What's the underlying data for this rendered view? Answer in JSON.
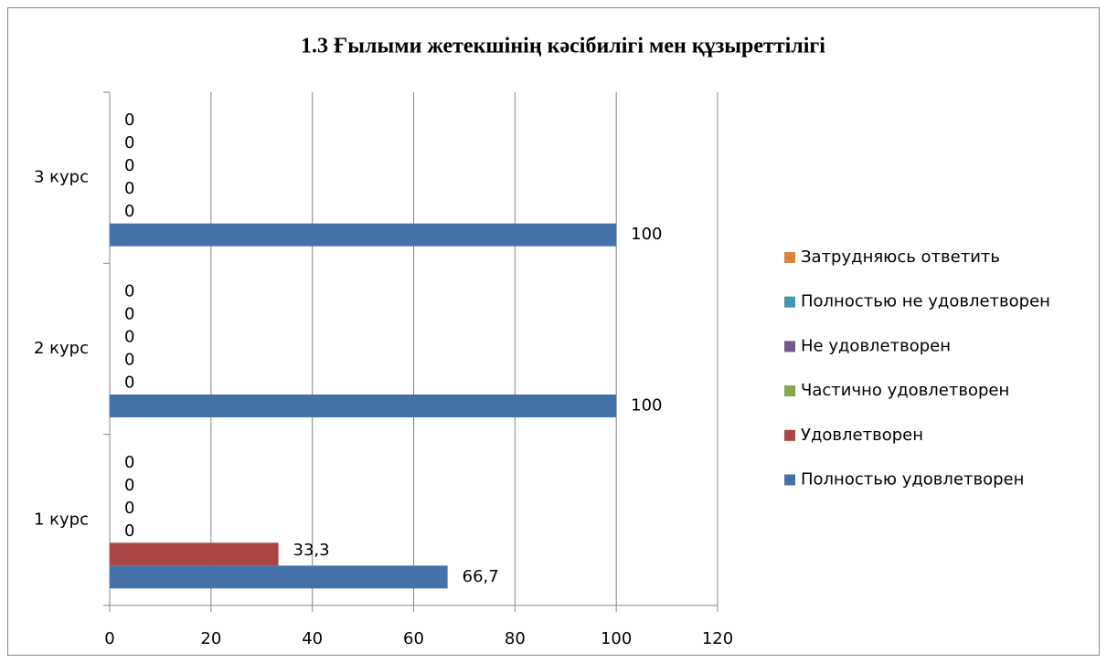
{
  "chart_data": {
    "type": "hbar",
    "title": "1.3 Ғылыми жетекшінің кәсібилігі мен құзыреттілігі",
    "categories": [
      "1 курс",
      "2 курс",
      "3 курс"
    ],
    "series": [
      {
        "name": "Полностью удовлетворен",
        "color": "#4472a8",
        "values": [
          66.7,
          100,
          100
        ],
        "value_labels": [
          "66,7",
          "100",
          "100"
        ]
      },
      {
        "name": "Удовлетворен",
        "color": "#aa4644",
        "values": [
          33.3,
          0,
          0
        ],
        "value_labels": [
          "33,3",
          "0",
          "0"
        ]
      },
      {
        "name": "Частично удовлетворен",
        "color": "#89a54e",
        "values": [
          0,
          0,
          0
        ]
      },
      {
        "name": "Не удовлетворен",
        "color": "#71588f",
        "values": [
          0,
          0,
          0
        ]
      },
      {
        "name": "Полностью не удовлетворен",
        "color": "#4198af",
        "values": [
          0,
          0,
          0
        ]
      },
      {
        "name": "Затрудняюсь ответить",
        "color": "#db843d",
        "values": [
          0,
          0,
          0
        ]
      }
    ],
    "xlim": [
      0,
      120
    ],
    "xticks": [
      0,
      20,
      40,
      60,
      80,
      100,
      120
    ],
    "grid": true,
    "legend": "right"
  }
}
